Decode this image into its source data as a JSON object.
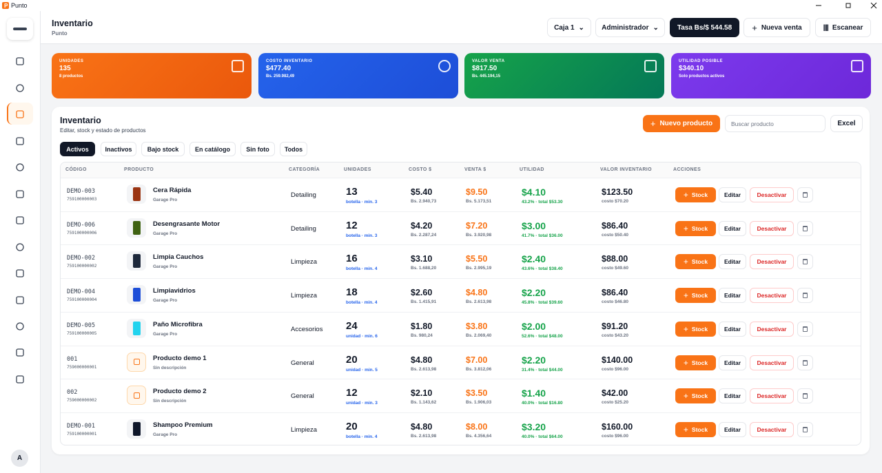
{
  "window": {
    "app": "Punto"
  },
  "header": {
    "title": "Inventario",
    "subtitle": "Punto",
    "register": "Caja 1",
    "role": "Administrador",
    "rate": "Tasa Bs/$ 544.58",
    "new_sale": "Nueva venta",
    "scan": "Escanear"
  },
  "cards": [
    {
      "label": "UNIDADES",
      "value": "135",
      "sub": "8 productos"
    },
    {
      "label": "COSTO INVENTARIO",
      "value": "$477.40",
      "sub": "Bs. 259.982,49"
    },
    {
      "label": "VALOR VENTA",
      "value": "$817.50",
      "sub": "Bs. 445.194,15"
    },
    {
      "label": "UTILIDAD POSIBLE",
      "value": "$340.10",
      "sub": "Solo productos activos"
    }
  ],
  "panel": {
    "title": "Inventario",
    "subtitle": "Editar, stock y estado de productos",
    "new_product": "Nuevo producto",
    "search": "Buscar producto",
    "excel": "Excel"
  },
  "tabs": [
    "Activos",
    "Inactivos",
    "Bajo stock",
    "En catálogo",
    "Sin foto",
    "Todos"
  ],
  "table": {
    "columns": [
      "CÓDIGO",
      "PRODUCTO",
      "CATEGORÍA",
      "UNIDADES",
      "COSTO $",
      "VENTA $",
      "UTILIDAD",
      "VALOR INVENTARIO",
      "ACCIONES"
    ],
    "rows": [
      {
        "code": "DEMO-003",
        "barcode": "759100000003",
        "name": "Cera Rápida",
        "brand": "Garage Pro",
        "category": "Detailing",
        "units": "13",
        "unit_info": "botella · min. 3",
        "cost": "$5.40",
        "cost_bs": "Bs. 2.940,73",
        "sale": "$9.50",
        "sale_bs": "Bs. 5.173,51",
        "profit": "$4.10",
        "profit_info": "43.2% · total $53.30",
        "inv_value": "$123.50",
        "inv_cost": "costo $70.20",
        "image_color": "#9a3412"
      },
      {
        "code": "DEMO-006",
        "barcode": "759100000006",
        "name": "Desengrasante Motor",
        "brand": "Garage Pro",
        "category": "Detailing",
        "units": "12",
        "unit_info": "botella · min. 3",
        "cost": "$4.20",
        "cost_bs": "Bs. 2.287,24",
        "sale": "$7.20",
        "sale_bs": "Bs. 3.920,98",
        "profit": "$3.00",
        "profit_info": "41.7% · total $36.00",
        "inv_value": "$86.40",
        "inv_cost": "costo $50.40",
        "image_color": "#3f6212"
      },
      {
        "code": "DEMO-002",
        "barcode": "759100000002",
        "name": "Limpia Cauchos",
        "brand": "Garage Pro",
        "category": "Limpieza",
        "units": "16",
        "unit_info": "botella · min. 4",
        "cost": "$3.10",
        "cost_bs": "Bs. 1.688,20",
        "sale": "$5.50",
        "sale_bs": "Bs. 2.995,19",
        "profit": "$2.40",
        "profit_info": "43.6% · total $38.40",
        "inv_value": "$88.00",
        "inv_cost": "costo $49.60",
        "image_color": "#1e293b"
      },
      {
        "code": "DEMO-004",
        "barcode": "759100000004",
        "name": "Limpiavidrios",
        "brand": "Garage Pro",
        "category": "Limpieza",
        "units": "18",
        "unit_info": "botella · min. 4",
        "cost": "$2.60",
        "cost_bs": "Bs. 1.415,91",
        "sale": "$4.80",
        "sale_bs": "Bs. 2.613,98",
        "profit": "$2.20",
        "profit_info": "45.8% · total $39.60",
        "inv_value": "$86.40",
        "inv_cost": "costo $46.80",
        "image_color": "#1d4ed8"
      },
      {
        "code": "DEMO-005",
        "barcode": "759100000005",
        "name": "Paño Microfibra",
        "brand": "Garage Pro",
        "category": "Accesorios",
        "units": "24",
        "unit_info": "unidad · min. 6",
        "cost": "$1.80",
        "cost_bs": "Bs. 980,24",
        "sale": "$3.80",
        "sale_bs": "Bs. 2.069,40",
        "profit": "$2.00",
        "profit_info": "52.6% · total $48.00",
        "inv_value": "$91.20",
        "inv_cost": "costo $43.20",
        "image_color": "#22d3ee"
      },
      {
        "code": "001",
        "barcode": "759000000001",
        "name": "Producto demo 1",
        "brand": "Sin descripción",
        "category": "General",
        "units": "20",
        "unit_info": "unidad · min. 5",
        "cost": "$4.80",
        "cost_bs": "Bs. 2.613,98",
        "sale": "$7.00",
        "sale_bs": "Bs. 3.812,06",
        "profit": "$2.20",
        "profit_info": "31.4% · total $44.00",
        "inv_value": "$140.00",
        "inv_cost": "costo $96.00",
        "image_color": null
      },
      {
        "code": "002",
        "barcode": "759000000002",
        "name": "Producto demo 2",
        "brand": "Sin descripción",
        "category": "General",
        "units": "12",
        "unit_info": "unidad · min. 3",
        "cost": "$2.10",
        "cost_bs": "Bs. 1.143,62",
        "sale": "$3.50",
        "sale_bs": "Bs. 1.906,03",
        "profit": "$1.40",
        "profit_info": "40.0% · total $16.80",
        "inv_value": "$42.00",
        "inv_cost": "costo $25.20",
        "image_color": null
      },
      {
        "code": "DEMO-001",
        "barcode": "759100000001",
        "name": "Shampoo Premium",
        "brand": "Garage Pro",
        "category": "Limpieza",
        "units": "20",
        "unit_info": "botella · min. 4",
        "cost": "$4.80",
        "cost_bs": "Bs. 2.613,98",
        "sale": "$8.00",
        "sale_bs": "Bs. 4.356,64",
        "profit": "$3.20",
        "profit_info": "40.0% · total $64.00",
        "inv_value": "$160.00",
        "inv_cost": "costo $96.00",
        "image_color": "#0f172a"
      }
    ]
  },
  "actions": {
    "stock": "Stock",
    "edit": "Editar",
    "deactivate": "Desactivar"
  },
  "user": {
    "initial": "A"
  }
}
